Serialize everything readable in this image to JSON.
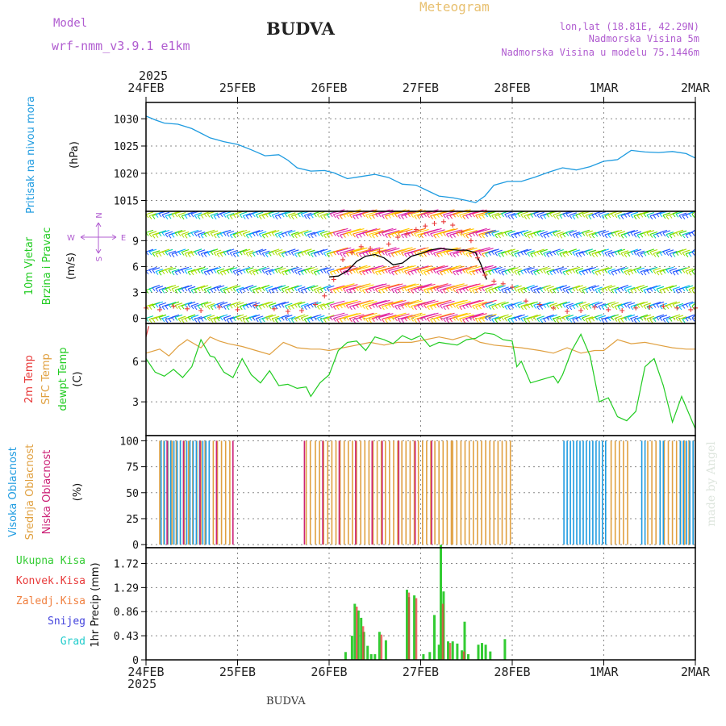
{
  "header": {
    "model_label": "Model",
    "model_name": "wrf-nmm_v3.9.1 e1km",
    "station": "BUDVA",
    "chart_type_label": "Meteogram",
    "coords": "lon,lat (18.81E, 42.29N)",
    "elevation": "Nadmorska Visina 5m",
    "model_elevation": "Nadmorska Visina u modelu 75.1446m"
  },
  "footer": {
    "station": "BUDVA",
    "credit": "made by Angel"
  },
  "colors": {
    "pressure": "#1e9be0",
    "wind_speed": "#000000",
    "gust": "#e83a3a",
    "t2m": "#e83a3a",
    "sfc": "#e0a040",
    "dewpt": "#22cc22",
    "cloud_high": "#1e9be0",
    "cloud_mid": "#e0a040",
    "cloud_low": "#cc2277",
    "precip_total": "#33cc33",
    "precip_conv": "#e83a3a",
    "precip_frz": "#f08040",
    "precip_snow": "#4444dd",
    "precip_hail": "#22cccc"
  },
  "chart_data": {
    "type": "line",
    "year": "2025",
    "x_dates": [
      "24FEB",
      "25FEB",
      "26FEB",
      "27FEB",
      "28FEB",
      "1MAR",
      "2MAR"
    ],
    "panels": [
      {
        "id": "pressure",
        "type": "line",
        "ylabel_side": "Pritisak na nivou mora",
        "unit": "(hPa)",
        "ylim": [
          1013,
          1033
        ],
        "yticks": [
          "1015",
          "1020",
          "1025",
          "1030"
        ],
        "series": [
          {
            "name": "Pritisak na nivou mora",
            "x": [
              0,
              0.1,
              0.2,
              0.35,
              0.5,
              0.7,
              0.85,
              1.0,
              1.15,
              1.3,
              1.45,
              1.55,
              1.65,
              1.8,
              1.95,
              2.05,
              2.2,
              2.35,
              2.5,
              2.65,
              2.8,
              2.95,
              3.05,
              3.2,
              3.35,
              3.5,
              3.6,
              3.7,
              3.8,
              3.95,
              4.1,
              4.25,
              4.4,
              4.55,
              4.7,
              4.85,
              5.0,
              5.15,
              5.3,
              5.45,
              5.6,
              5.75,
              5.9,
              6.0
            ],
            "y": [
              1030.5,
              1029.8,
              1029.2,
              1029.0,
              1028.2,
              1026.5,
              1025.8,
              1025.3,
              1024.3,
              1023.2,
              1023.4,
              1022.4,
              1021.0,
              1020.4,
              1020.5,
              1020.1,
              1019.0,
              1019.4,
              1019.8,
              1019.2,
              1018.0,
              1017.8,
              1017.0,
              1015.8,
              1015.5,
              1015.0,
              1014.6,
              1015.8,
              1017.8,
              1018.5,
              1018.5,
              1019.3,
              1020.2,
              1021.0,
              1020.6,
              1021.2,
              1022.2,
              1022.5,
              1024.2,
              1023.9,
              1023.8,
              1024.0,
              1023.6,
              1022.8
            ]
          }
        ]
      },
      {
        "id": "wind",
        "type": "line",
        "ylabel_side_1": "10m Vjetar",
        "ylabel_side_2": "Brzina i Pravac",
        "unit": "(m/s)",
        "compass": {
          "n": "N",
          "s": "S",
          "w": "W",
          "e": "E"
        },
        "ylim": [
          -0.6,
          12.4
        ],
        "yticks": [
          "0",
          "3",
          "6",
          "9"
        ],
        "barb_levels": [
          0,
          1.5,
          3.4,
          5.5,
          7.6,
          9.8,
          12.0
        ],
        "series": [
          {
            "name": "wind_speed",
            "x": [
              2.0,
              2.1,
              2.2,
              2.3,
              2.4,
              2.5,
              2.6,
              2.7,
              2.8,
              2.9,
              3.0,
              3.1,
              3.2,
              3.3,
              3.4,
              3.5,
              3.6,
              3.66,
              3.72
            ],
            "y": [
              4.8,
              4.9,
              5.5,
              6.6,
              7.2,
              7.4,
              7.0,
              6.2,
              6.4,
              7.2,
              7.5,
              7.9,
              8.1,
              8.0,
              7.9,
              7.9,
              7.6,
              6.2,
              4.5
            ]
          },
          {
            "name": "gust",
            "x": [
              0.0,
              0.15,
              0.3,
              0.45,
              0.6,
              0.8,
              1.0,
              1.2,
              1.4,
              1.55,
              1.7,
              1.85,
              1.95,
              2.05,
              2.15,
              2.25,
              2.35,
              2.45,
              2.55,
              2.65,
              2.75,
              2.85,
              2.95,
              3.05,
              3.15,
              3.25,
              3.35,
              3.45,
              3.55,
              3.62,
              3.7,
              3.8,
              3.9,
              4.0,
              4.15,
              4.3,
              4.45,
              4.6,
              4.75,
              4.9,
              5.05,
              5.2,
              5.35,
              5.5,
              5.65,
              5.8,
              5.95,
              6.0
            ],
            "y": [
              1.2,
              1.0,
              1.4,
              1.1,
              0.9,
              1.3,
              1.0,
              1.5,
              1.1,
              0.8,
              0.9,
              1.6,
              2.6,
              4.5,
              6.8,
              7.6,
              8.3,
              8.1,
              7.8,
              8.6,
              9.4,
              9.8,
              10.3,
              10.7,
              11.0,
              11.2,
              10.8,
              10.0,
              9.0,
              7.0,
              5.0,
              4.3,
              4.0,
              3.6,
              2.0,
              1.6,
              1.2,
              0.8,
              0.9,
              1.3,
              1.0,
              0.9,
              1.2,
              1.3,
              1.4,
              1.2,
              1.0,
              1.2
            ]
          }
        ]
      },
      {
        "id": "temperature",
        "type": "line",
        "ylabel_side_1": "2m Temp",
        "ylabel_side_2": "SFC Temp",
        "ylabel_side_3": "dewpt Temp",
        "unit": "(C)",
        "ylim": [
          0.5,
          8.8
        ],
        "yticks": [
          "3",
          "6"
        ],
        "series": [
          {
            "name": "2m Temp",
            "x": [
              0.0,
              0.03
            ],
            "y": [
              7.8,
              8.6
            ]
          },
          {
            "name": "SFC Temp",
            "x": [
              0.0,
              0.15,
              0.25,
              0.35,
              0.45,
              0.6,
              0.7,
              0.8,
              0.9,
              1.05,
              1.2,
              1.35,
              1.5,
              1.65,
              1.8,
              1.9,
              2.0,
              2.15,
              2.3,
              2.45,
              2.6,
              2.75,
              2.9,
              3.05,
              3.2,
              3.35,
              3.5,
              3.65,
              3.8,
              3.95,
              4.1,
              4.3,
              4.45,
              4.6,
              4.75,
              4.9,
              5.0,
              5.15,
              5.3,
              5.45,
              5.6,
              5.75,
              5.9,
              6.0
            ],
            "y": [
              6.6,
              6.9,
              6.4,
              7.1,
              7.6,
              7.0,
              7.8,
              7.5,
              7.3,
              7.1,
              6.8,
              6.5,
              7.4,
              7.0,
              6.9,
              6.9,
              6.8,
              7.0,
              7.2,
              7.4,
              7.2,
              7.4,
              7.4,
              7.6,
              7.8,
              7.6,
              7.9,
              7.4,
              7.2,
              7.1,
              7.0,
              6.8,
              6.6,
              7.0,
              6.6,
              6.8,
              6.8,
              7.6,
              7.3,
              7.4,
              7.2,
              7.0,
              6.9,
              6.9
            ]
          },
          {
            "name": "dewpt Temp",
            "x": [
              0.0,
              0.1,
              0.2,
              0.3,
              0.4,
              0.5,
              0.6,
              0.7,
              0.75,
              0.85,
              0.95,
              1.05,
              1.15,
              1.25,
              1.35,
              1.45,
              1.55,
              1.65,
              1.75,
              1.8,
              1.9,
              2.0,
              2.1,
              2.2,
              2.3,
              2.4,
              2.5,
              2.6,
              2.7,
              2.8,
              2.9,
              3.0,
              3.1,
              3.2,
              3.3,
              3.4,
              3.5,
              3.6,
              3.7,
              3.8,
              3.9,
              4.0,
              4.05,
              4.1,
              4.2,
              4.3,
              4.45,
              4.5,
              4.55,
              4.65,
              4.75,
              4.85,
              4.95,
              5.05,
              5.15,
              5.25,
              5.35,
              5.45,
              5.55,
              5.65,
              5.75,
              5.85,
              6.0
            ],
            "y": [
              6.2,
              5.2,
              4.9,
              5.4,
              4.8,
              5.6,
              7.6,
              6.4,
              6.3,
              5.2,
              4.8,
              6.2,
              5.0,
              4.4,
              5.3,
              4.2,
              4.3,
              4.0,
              4.1,
              3.4,
              4.4,
              5.0,
              6.8,
              7.4,
              7.5,
              6.8,
              7.8,
              7.6,
              7.3,
              7.9,
              7.6,
              7.9,
              7.1,
              7.4,
              7.3,
              7.2,
              7.6,
              7.7,
              8.1,
              8.0,
              7.6,
              7.5,
              5.6,
              6.0,
              4.4,
              4.6,
              4.9,
              4.4,
              5.0,
              6.8,
              8.0,
              6.4,
              3.0,
              3.3,
              1.9,
              1.6,
              2.3,
              5.6,
              6.2,
              4.2,
              1.5,
              3.4,
              1.0
            ]
          }
        ]
      },
      {
        "id": "cloud",
        "type": "bar",
        "ylabel_side_1": "Visoka Oblacnost",
        "ylabel_side_2": "Srednja Oblacnost",
        "ylabel_side_3": "Niska Oblacnost",
        "unit": "(%)",
        "ylim": [
          -3,
          105
        ],
        "yticks": [
          "0",
          "25",
          "50",
          "75",
          "100"
        ],
        "high_periods": [
          [
            0.15,
            0.7
          ],
          [
            4.55,
            5.05
          ],
          [
            5.4,
            5.48
          ],
          [
            5.6,
            5.68
          ],
          [
            5.82,
            5.98
          ]
        ],
        "mid_periods": [
          [
            0.15,
            0.95
          ],
          [
            1.75,
            1.8
          ],
          [
            1.85,
            3.35
          ],
          [
            3.35,
            4.0
          ],
          [
            5.08,
            5.28
          ],
          [
            5.48,
            6.0
          ]
        ],
        "low_periods": [
          [
            0.2,
            1.05
          ],
          [
            1.7,
            1.78
          ],
          [
            1.9,
            2.5
          ],
          [
            2.55,
            3.3
          ]
        ]
      },
      {
        "id": "precip",
        "type": "bar",
        "legend": [
          "Ukupna Kisa",
          "Konvek.Kisa",
          "Zaledj.Kisa",
          "Snijeg",
          "Grad"
        ],
        "unit": "1hr Precip (mm)",
        "ylim": [
          0,
          2.0
        ],
        "yticks": [
          "0",
          "0.43",
          "0.86",
          "1.29",
          "1.72"
        ],
        "total": {
          "x": [
            2.18,
            2.25,
            2.28,
            2.32,
            2.35,
            2.38,
            2.42,
            2.46,
            2.5,
            2.55,
            2.62,
            2.85,
            2.87,
            2.93,
            3.03,
            3.1,
            3.15,
            3.2,
            3.22,
            3.25,
            3.3,
            3.35,
            3.4,
            3.45,
            3.48,
            3.52,
            3.63,
            3.67,
            3.71,
            3.76,
            3.92
          ],
          "y": [
            0.14,
            0.43,
            1.0,
            0.88,
            0.75,
            0.5,
            0.25,
            0.1,
            0.1,
            0.5,
            0.35,
            1.25,
            1.12,
            1.15,
            0.1,
            0.14,
            0.8,
            0.27,
            2.05,
            1.22,
            0.33,
            0.33,
            0.29,
            0.17,
            0.68,
            0.1,
            0.27,
            0.3,
            0.27,
            0.15,
            0.37
          ]
        },
        "convective": {
          "x": [
            2.28,
            2.35,
            2.55,
            2.85,
            2.93,
            3.22,
            3.3,
            3.45
          ],
          "y": [
            0.95,
            0.6,
            0.45,
            1.2,
            1.1,
            1.0,
            0.3,
            0.15
          ]
        }
      }
    ]
  }
}
